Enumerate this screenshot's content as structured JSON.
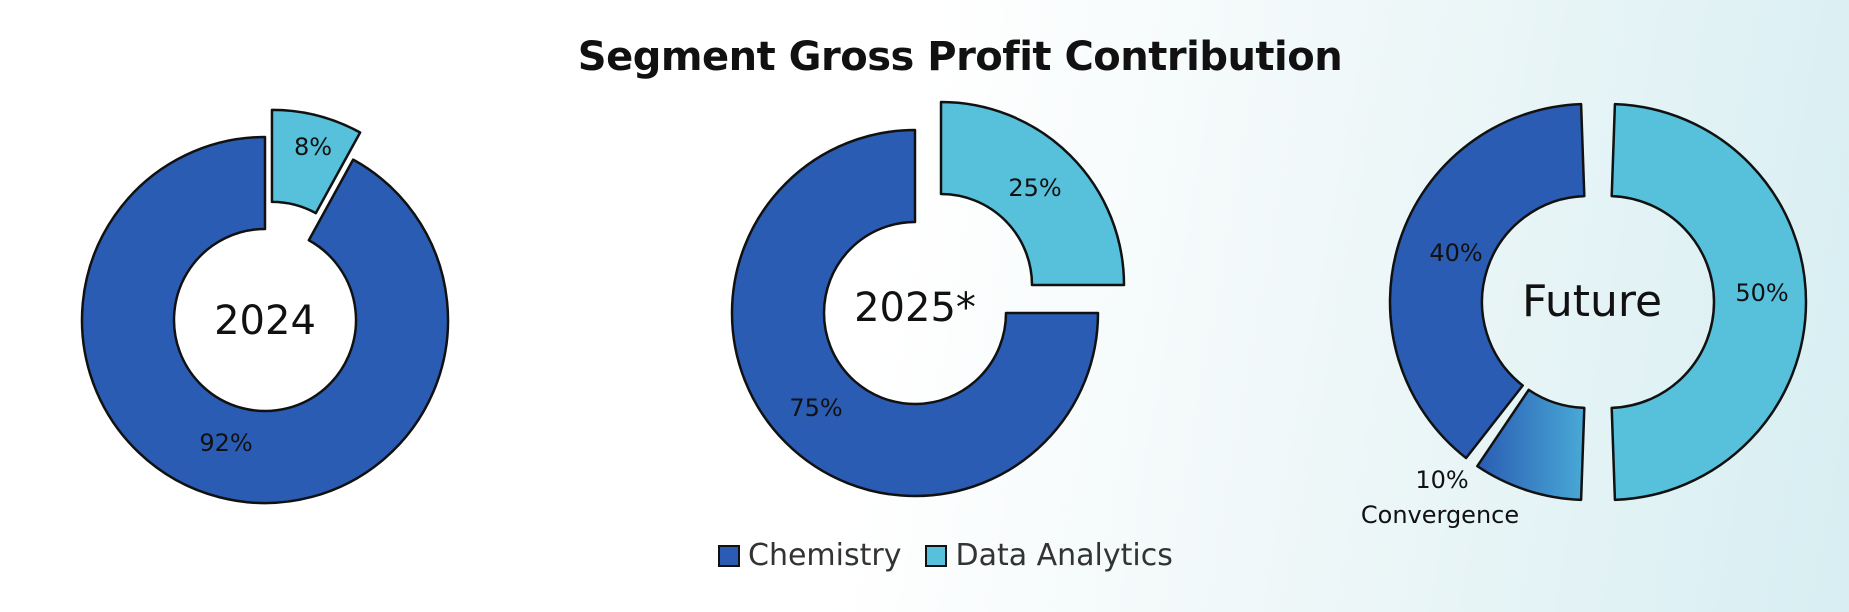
{
  "title": "Segment Gross Profit Contribution",
  "colors": {
    "chemistry": "#2A5CB3",
    "data_analytics": "#57C0DA",
    "convergence_light": "#49A9D6",
    "outline": "#111111"
  },
  "legend": {
    "items": [
      {
        "label": "Chemistry",
        "color": "#2A5CB3"
      },
      {
        "label": "Data Analytics",
        "color": "#57C0DA"
      }
    ]
  },
  "chart_data": [
    {
      "type": "pie",
      "variant": "donut",
      "center_label": "2024",
      "categories": [
        "Chemistry",
        "Data Analytics"
      ],
      "values": [
        92,
        8
      ],
      "labels": [
        "92%",
        "8%"
      ],
      "exploded": [
        "Data Analytics"
      ]
    },
    {
      "type": "pie",
      "variant": "donut",
      "center_label": "2025*",
      "categories": [
        "Chemistry",
        "Data Analytics"
      ],
      "values": [
        75,
        25
      ],
      "labels": [
        "75%",
        "25%"
      ],
      "exploded": [
        "Data Analytics"
      ]
    },
    {
      "type": "pie",
      "variant": "donut",
      "center_label": "Future",
      "categories": [
        "Chemistry",
        "Convergence",
        "Data Analytics"
      ],
      "values": [
        40,
        10,
        50
      ],
      "labels": [
        "40%",
        "10%",
        "50%"
      ],
      "sublabels": [
        "",
        "Convergence",
        ""
      ],
      "exploded": [
        "Data Analytics"
      ]
    }
  ]
}
